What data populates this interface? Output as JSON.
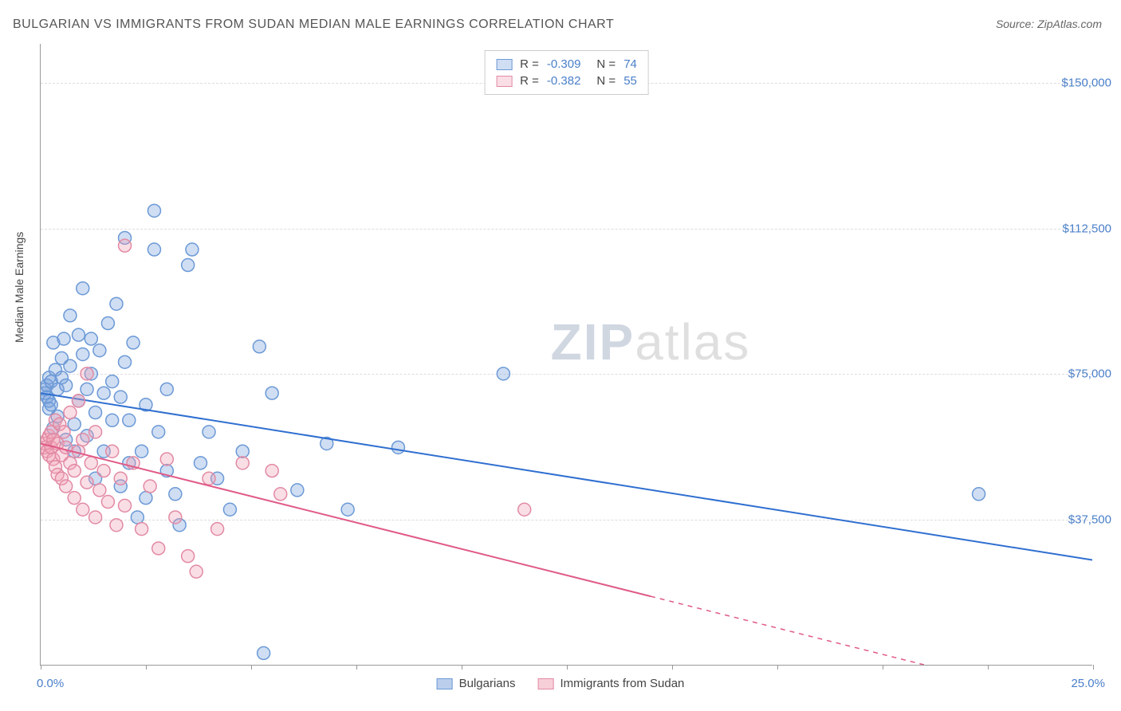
{
  "title": "BULGARIAN VS IMMIGRANTS FROM SUDAN MEDIAN MALE EARNINGS CORRELATION CHART",
  "source_prefix": "Source: ",
  "source_name": "ZipAtlas.com",
  "ylabel": "Median Male Earnings",
  "watermark_a": "ZIP",
  "watermark_b": "atlas",
  "chart": {
    "type": "scatter",
    "xlim": [
      0,
      25
    ],
    "ylim": [
      0,
      160000
    ],
    "x_tick_positions": [
      0,
      2.5,
      5,
      7.5,
      10,
      12.5,
      15,
      17.5,
      20,
      22.5,
      25
    ],
    "y_ticks": [
      {
        "v": 37500,
        "label": "$37,500"
      },
      {
        "v": 75000,
        "label": "$75,000"
      },
      {
        "v": 112500,
        "label": "$112,500"
      },
      {
        "v": 150000,
        "label": "$150,000"
      }
    ],
    "x_min_label": "0.0%",
    "x_max_label": "25.0%",
    "background_color": "#ffffff",
    "grid_color": "#dddddd",
    "marker_radius": 8,
    "marker_stroke_width": 1.5,
    "trend_line_width": 2,
    "series": [
      {
        "name": "Bulgarians",
        "fill": "rgba(120,160,220,0.35)",
        "stroke": "#6b99d6",
        "line_color": "#2f6fd0",
        "R": "-0.309",
        "N": "74",
        "trend": {
          "x1": 0,
          "y1": 70000,
          "x2": 25,
          "y2": 27000,
          "dash_from_x": null
        },
        "points": [
          [
            0.1,
            70000
          ],
          [
            0.1,
            71000
          ],
          [
            0.15,
            69000
          ],
          [
            0.15,
            72000
          ],
          [
            0.2,
            68000
          ],
          [
            0.2,
            74000
          ],
          [
            0.2,
            66000
          ],
          [
            0.25,
            73000
          ],
          [
            0.25,
            67000
          ],
          [
            0.3,
            83000
          ],
          [
            0.3,
            61000
          ],
          [
            0.35,
            76000
          ],
          [
            0.4,
            71000
          ],
          [
            0.4,
            64000
          ],
          [
            0.5,
            74000
          ],
          [
            0.5,
            79000
          ],
          [
            0.55,
            84000
          ],
          [
            0.6,
            58000
          ],
          [
            0.6,
            72000
          ],
          [
            0.7,
            77000
          ],
          [
            0.7,
            90000
          ],
          [
            0.8,
            55000
          ],
          [
            0.8,
            62000
          ],
          [
            0.9,
            85000
          ],
          [
            0.9,
            68000
          ],
          [
            1.0,
            80000
          ],
          [
            1.0,
            97000
          ],
          [
            1.1,
            59000
          ],
          [
            1.1,
            71000
          ],
          [
            1.2,
            84000
          ],
          [
            1.2,
            75000
          ],
          [
            1.3,
            48000
          ],
          [
            1.3,
            65000
          ],
          [
            1.4,
            81000
          ],
          [
            1.5,
            70000
          ],
          [
            1.5,
            55000
          ],
          [
            1.6,
            88000
          ],
          [
            1.7,
            63000
          ],
          [
            1.7,
            73000
          ],
          [
            1.8,
            93000
          ],
          [
            1.9,
            46000
          ],
          [
            1.9,
            69000
          ],
          [
            2.0,
            78000
          ],
          [
            2.0,
            110000
          ],
          [
            2.1,
            52000
          ],
          [
            2.1,
            63000
          ],
          [
            2.2,
            83000
          ],
          [
            2.3,
            38000
          ],
          [
            2.4,
            55000
          ],
          [
            2.5,
            67000
          ],
          [
            2.5,
            43000
          ],
          [
            2.7,
            117000
          ],
          [
            2.7,
            107000
          ],
          [
            2.8,
            60000
          ],
          [
            3.0,
            50000
          ],
          [
            3.0,
            71000
          ],
          [
            3.2,
            44000
          ],
          [
            3.3,
            36000
          ],
          [
            3.5,
            103000
          ],
          [
            3.6,
            107000
          ],
          [
            3.8,
            52000
          ],
          [
            4.0,
            60000
          ],
          [
            4.2,
            48000
          ],
          [
            4.5,
            40000
          ],
          [
            4.8,
            55000
          ],
          [
            5.2,
            82000
          ],
          [
            5.3,
            3000
          ],
          [
            5.5,
            70000
          ],
          [
            6.1,
            45000
          ],
          [
            6.8,
            57000
          ],
          [
            7.3,
            40000
          ],
          [
            8.5,
            56000
          ],
          [
            11.0,
            75000
          ],
          [
            22.3,
            44000
          ]
        ]
      },
      {
        "name": "Immigrants from Sudan",
        "fill": "rgba(240,160,180,0.35)",
        "stroke": "#e28aa4",
        "line_color": "#e05a87",
        "R": "-0.382",
        "N": "55",
        "trend": {
          "x1": 0,
          "y1": 57000,
          "x2": 21,
          "y2": 0,
          "dash_from_x": 14.5
        },
        "points": [
          [
            0.1,
            57000
          ],
          [
            0.1,
            56000
          ],
          [
            0.15,
            58000
          ],
          [
            0.15,
            55000
          ],
          [
            0.2,
            59000
          ],
          [
            0.2,
            54000
          ],
          [
            0.25,
            56000
          ],
          [
            0.25,
            60000
          ],
          [
            0.3,
            53000
          ],
          [
            0.3,
            58000
          ],
          [
            0.35,
            63000
          ],
          [
            0.35,
            51000
          ],
          [
            0.4,
            57000
          ],
          [
            0.4,
            49000
          ],
          [
            0.45,
            62000
          ],
          [
            0.5,
            54000
          ],
          [
            0.5,
            48000
          ],
          [
            0.55,
            60000
          ],
          [
            0.6,
            46000
          ],
          [
            0.6,
            56000
          ],
          [
            0.7,
            52000
          ],
          [
            0.7,
            65000
          ],
          [
            0.8,
            43000
          ],
          [
            0.8,
            50000
          ],
          [
            0.9,
            55000
          ],
          [
            0.9,
            68000
          ],
          [
            1.0,
            40000
          ],
          [
            1.0,
            58000
          ],
          [
            1.1,
            47000
          ],
          [
            1.1,
            75000
          ],
          [
            1.2,
            52000
          ],
          [
            1.3,
            38000
          ],
          [
            1.3,
            60000
          ],
          [
            1.4,
            45000
          ],
          [
            1.5,
            50000
          ],
          [
            1.6,
            42000
          ],
          [
            1.7,
            55000
          ],
          [
            1.8,
            36000
          ],
          [
            1.9,
            48000
          ],
          [
            2.0,
            108000
          ],
          [
            2.0,
            41000
          ],
          [
            2.2,
            52000
          ],
          [
            2.4,
            35000
          ],
          [
            2.6,
            46000
          ],
          [
            2.8,
            30000
          ],
          [
            3.0,
            53000
          ],
          [
            3.2,
            38000
          ],
          [
            3.5,
            28000
          ],
          [
            3.7,
            24000
          ],
          [
            4.0,
            48000
          ],
          [
            4.2,
            35000
          ],
          [
            4.8,
            52000
          ],
          [
            5.5,
            50000
          ],
          [
            5.7,
            44000
          ],
          [
            11.5,
            40000
          ]
        ]
      }
    ]
  },
  "legend_bottom": [
    {
      "label": "Bulgarians",
      "fill": "rgba(120,160,220,0.5)",
      "stroke": "#6b99d6"
    },
    {
      "label": "Immigrants from Sudan",
      "fill": "rgba(240,160,180,0.5)",
      "stroke": "#e28aa4"
    }
  ]
}
